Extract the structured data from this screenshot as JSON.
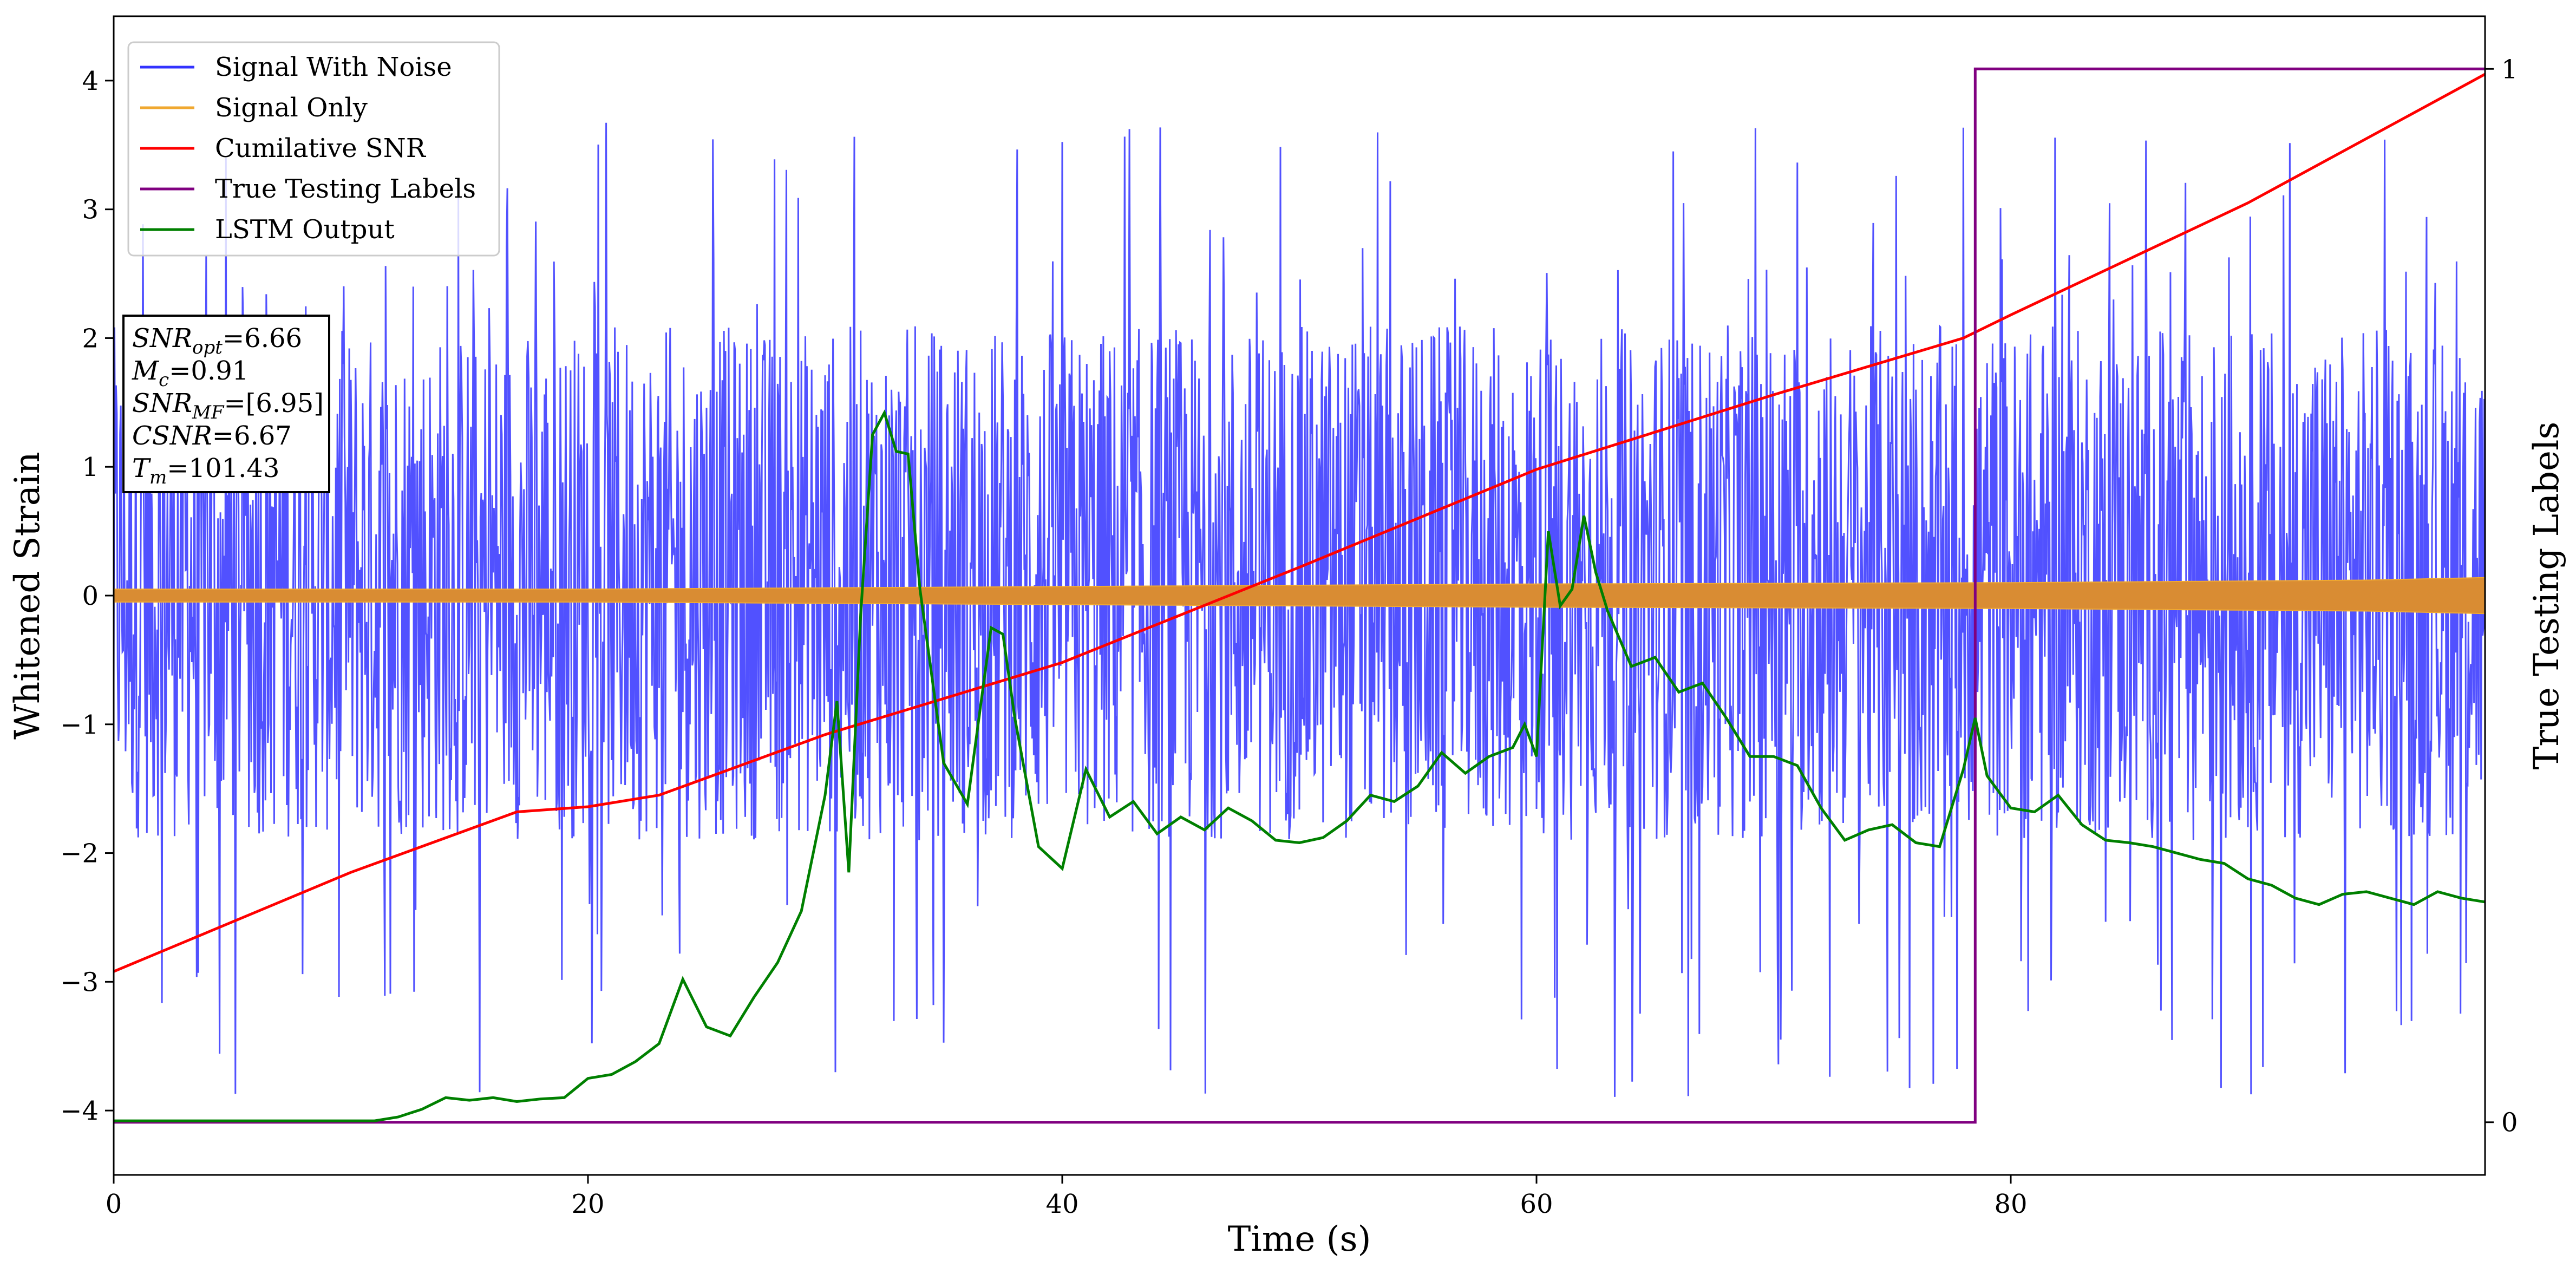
{
  "chart_data": {
    "type": "line",
    "title": "",
    "xlabel": "Time (s)",
    "ylabel": "Whitened Strain",
    "ylabel_right": "True Testing Labels",
    "xlim": [
      0,
      100
    ],
    "ylim": [
      -4.5,
      4.5
    ],
    "ylim_right": [
      -0.05,
      1.05
    ],
    "grid": false,
    "legend_position": "upper-left",
    "x_ticks": [
      0,
      20,
      40,
      60,
      80
    ],
    "y_ticks": [
      -4,
      -3,
      -2,
      -1,
      0,
      1,
      2,
      3,
      4
    ],
    "y_ticks_right": [
      0,
      1
    ],
    "legend": [
      "Signal With Noise",
      "Signal Only",
      "Cumilative SNR",
      "True Testing Labels",
      "LSTM Output"
    ],
    "annotation_lines": [
      {
        "base": "SNR",
        "sub": "opt",
        "rest": "=6.66"
      },
      {
        "base": "M",
        "sub": "c",
        "rest": "=0.91"
      },
      {
        "base": "SNR",
        "sub": "MF",
        "rest": "=[6.95]"
      },
      {
        "base": "CSNR",
        "sub": "",
        "rest": "=6.67"
      },
      {
        "base": "T",
        "sub": "m",
        "rest": "=101.43"
      }
    ],
    "series": [
      {
        "name": "Signal With Noise",
        "color": "#3333ff",
        "kind": "noise",
        "typical_range": [
          -1.9,
          2.1
        ],
        "spike_range": [
          -3.9,
          3.7
        ]
      },
      {
        "name": "Signal Only",
        "color": "#f0a830",
        "kind": "band",
        "x": [
          0,
          20,
          40,
          60,
          80,
          95,
          100
        ],
        "amplitude": [
          0.05,
          0.05,
          0.07,
          0.09,
          0.1,
          0.12,
          0.14
        ]
      },
      {
        "name": "Cumilative SNR",
        "color": "#ff0000",
        "kind": "line",
        "x": [
          0,
          10,
          17,
          20,
          23,
          30,
          40,
          50,
          60,
          70,
          78,
          80,
          90,
          100
        ],
        "y": [
          -2.92,
          -2.15,
          -1.68,
          -1.64,
          -1.55,
          -1.08,
          -0.52,
          0.22,
          0.98,
          1.56,
          2.0,
          2.18,
          3.05,
          4.05
        ]
      },
      {
        "name": "True Testing Labels",
        "color": "#800080",
        "kind": "step",
        "axis": "right",
        "x": [
          0,
          78.0,
          78.0,
          78.5,
          78.5,
          100
        ],
        "y": [
          0,
          0,
          0,
          0,
          1,
          1
        ]
      },
      {
        "name": "LSTM Output",
        "color": "#008000",
        "kind": "line",
        "x": [
          0,
          11,
          12,
          13,
          14,
          15,
          16,
          17,
          18,
          19,
          20,
          21,
          22,
          23,
          24,
          25,
          26,
          27,
          28,
          29,
          30,
          30.5,
          31,
          31.5,
          32,
          32.5,
          33,
          33.5,
          34,
          35,
          36,
          37,
          37.5,
          38,
          39,
          40,
          41,
          42,
          43,
          44,
          45,
          46,
          47,
          48,
          49,
          50,
          51,
          52,
          53,
          54,
          55,
          56,
          57,
          58,
          59,
          59.5,
          60,
          60.5,
          61,
          61.5,
          62,
          62.5,
          63,
          64,
          65,
          66,
          67,
          68,
          69,
          70,
          71,
          72,
          73,
          74,
          75,
          76,
          77,
          78,
          78.5,
          79,
          80,
          81,
          82,
          83,
          84,
          85,
          86,
          87,
          88,
          89,
          90,
          91,
          92,
          93,
          94,
          95,
          96,
          97,
          98,
          99,
          100
        ],
        "y": [
          -4.08,
          -4.08,
          -4.05,
          -3.99,
          -3.9,
          -3.92,
          -3.9,
          -3.93,
          -3.91,
          -3.9,
          -3.75,
          -3.72,
          -3.62,
          -3.48,
          -2.98,
          -3.35,
          -3.42,
          -3.12,
          -2.85,
          -2.45,
          -1.55,
          -0.82,
          -2.15,
          -0.15,
          1.25,
          1.42,
          1.12,
          1.1,
          0.05,
          -1.3,
          -1.62,
          -0.25,
          -0.3,
          -0.95,
          -1.95,
          -2.12,
          -1.35,
          -1.72,
          -1.6,
          -1.85,
          -1.72,
          -1.82,
          -1.65,
          -1.75,
          -1.9,
          -1.92,
          -1.88,
          -1.75,
          -1.55,
          -1.6,
          -1.48,
          -1.22,
          -1.38,
          -1.25,
          -1.18,
          -1.0,
          -1.25,
          0.5,
          -0.08,
          0.05,
          0.62,
          0.18,
          -0.12,
          -0.55,
          -0.48,
          -0.75,
          -0.68,
          -0.95,
          -1.25,
          -1.25,
          -1.32,
          -1.65,
          -1.9,
          -1.82,
          -1.78,
          -1.92,
          -1.95,
          -1.35,
          -0.95,
          -1.4,
          -1.65,
          -1.68,
          -1.55,
          -1.78,
          -1.9,
          -1.92,
          -1.95,
          -2.0,
          -2.05,
          -2.08,
          -2.2,
          -2.25,
          -2.35,
          -2.4,
          -2.32,
          -2.3,
          -2.35,
          -2.4,
          -2.3,
          -2.35,
          -2.38
        ]
      }
    ]
  }
}
